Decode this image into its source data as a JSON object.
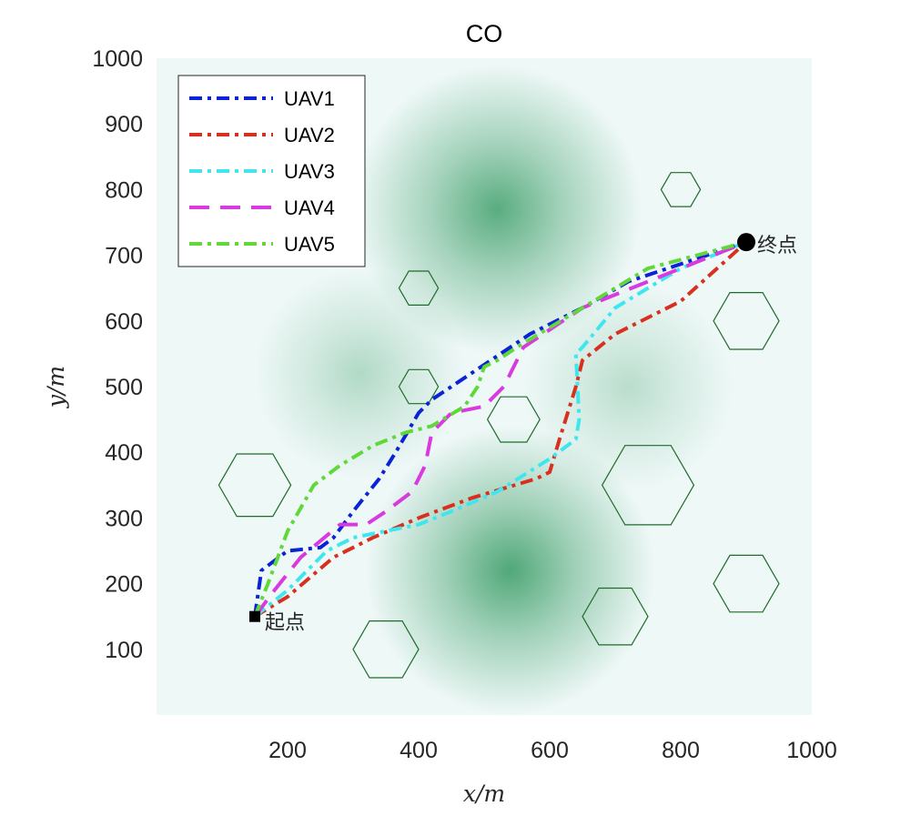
{
  "chart_data": {
    "type": "line",
    "title": "CO",
    "xlabel": "x/m",
    "ylabel": "y/m",
    "xlim": [
      0,
      1000
    ],
    "ylim": [
      0,
      1000
    ],
    "xticks": [
      200,
      400,
      600,
      800,
      1000
    ],
    "yticks": [
      100,
      200,
      300,
      400,
      500,
      600,
      700,
      800,
      900,
      1000
    ],
    "legend_position": "top-left",
    "background_color": "#eef8f7",
    "terrain_color": "#3f9f6a",
    "terrain_peaks": [
      {
        "x": 520,
        "y": 770,
        "sigma": 110,
        "weight": 0.85
      },
      {
        "x": 540,
        "y": 220,
        "sigma": 110,
        "weight": 0.9
      },
      {
        "x": 310,
        "y": 520,
        "sigma": 80,
        "weight": 0.35
      },
      {
        "x": 720,
        "y": 500,
        "sigma": 80,
        "weight": 0.3
      }
    ],
    "obstacle_color": "#1f6b2a",
    "obstacles": [
      {
        "x": 800,
        "y": 800,
        "r": 30
      },
      {
        "x": 400,
        "y": 650,
        "r": 30
      },
      {
        "x": 400,
        "y": 500,
        "r": 30
      },
      {
        "x": 545,
        "y": 450,
        "r": 40
      },
      {
        "x": 900,
        "y": 600,
        "r": 50
      },
      {
        "x": 150,
        "y": 350,
        "r": 55
      },
      {
        "x": 750,
        "y": 350,
        "r": 70
      },
      {
        "x": 700,
        "y": 150,
        "r": 50
      },
      {
        "x": 900,
        "y": 200,
        "r": 50
      },
      {
        "x": 350,
        "y": 100,
        "r": 50
      }
    ],
    "start": {
      "x": 150,
      "y": 150,
      "label": "起点"
    },
    "goal": {
      "x": 900,
      "y": 720,
      "label": "终点"
    },
    "series": [
      {
        "name": "UAV1",
        "color": "#0a22d8",
        "dash": "14 6 4 6",
        "x": [
          150,
          160,
          200,
          250,
          270,
          300,
          340,
          365,
          400,
          420,
          480,
          570,
          650,
          720,
          900
        ],
        "y": [
          150,
          220,
          250,
          255,
          270,
          310,
          360,
          400,
          460,
          480,
          520,
          580,
          620,
          660,
          720
        ]
      },
      {
        "name": "UAV2",
        "color": "#d8301e",
        "dash": "14 6 4 6",
        "x": [
          150,
          200,
          270,
          330,
          400,
          480,
          580,
          600,
          615,
          640,
          650,
          700,
          800,
          900
        ],
        "y": [
          150,
          180,
          240,
          270,
          300,
          330,
          360,
          370,
          420,
          500,
          540,
          580,
          630,
          720
        ]
      },
      {
        "name": "UAV3",
        "color": "#3fe6ee",
        "dash": "14 6 4 6",
        "x": [
          150,
          200,
          260,
          300,
          350,
          400,
          450,
          520,
          600,
          640,
          645,
          640,
          650,
          700,
          800,
          900
        ],
        "y": [
          150,
          190,
          250,
          270,
          280,
          290,
          310,
          340,
          390,
          420,
          450,
          550,
          560,
          620,
          680,
          720
        ]
      },
      {
        "name": "UAV4",
        "color": "#d83ae0",
        "dash": "22 12",
        "x": [
          150,
          180,
          220,
          280,
          320,
          350,
          390,
          410,
          420,
          450,
          500,
          530,
          560,
          650,
          750,
          900
        ],
        "y": [
          150,
          190,
          240,
          290,
          290,
          310,
          340,
          380,
          430,
          460,
          470,
          500,
          560,
          620,
          660,
          720
        ]
      },
      {
        "name": "UAV5",
        "color": "#5fd838",
        "dash": "14 6 4 6",
        "x": [
          150,
          170,
          200,
          240,
          280,
          330,
          380,
          420,
          470,
          490,
          500,
          520,
          550,
          650,
          750,
          900
        ],
        "y": [
          150,
          200,
          280,
          350,
          380,
          410,
          430,
          440,
          470,
          500,
          530,
          540,
          560,
          620,
          680,
          720
        ]
      }
    ]
  }
}
